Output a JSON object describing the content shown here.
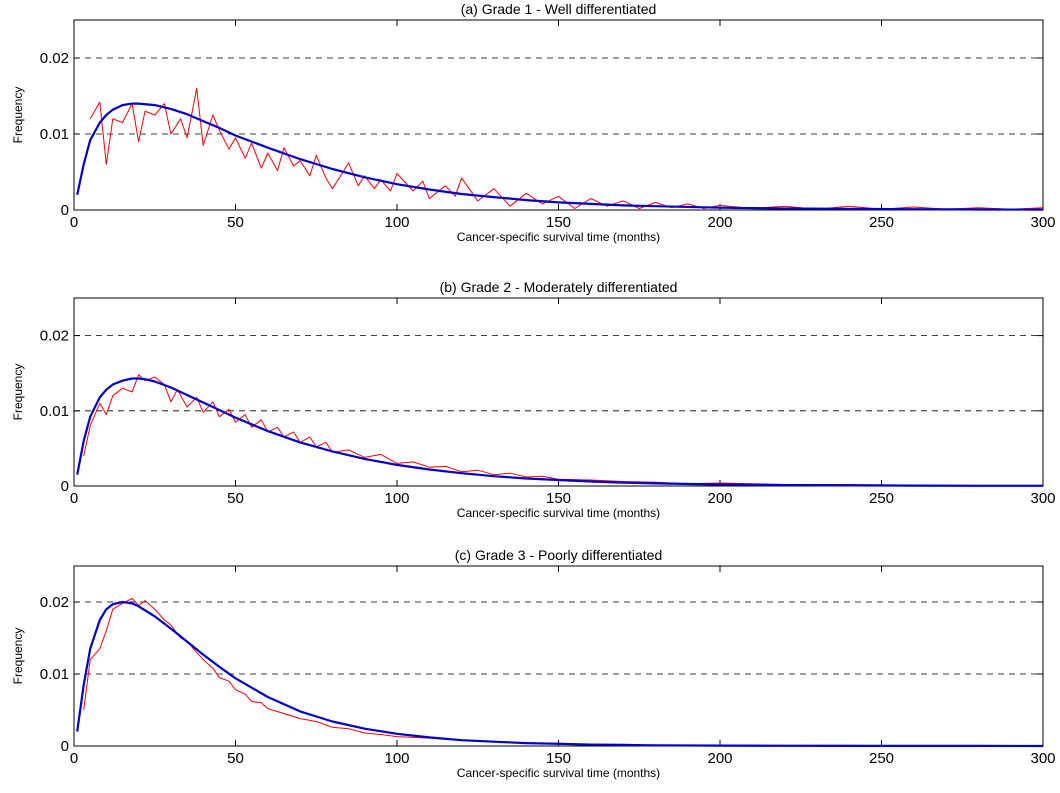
{
  "chart_data": [
    {
      "type": "line",
      "title": "(a) Grade 1 - Well differentiated",
      "xlabel": "Cancer-specific survival time (months)",
      "ylabel": "Frequency",
      "xlim": [
        0,
        300
      ],
      "ylim": [
        0,
        0.025
      ],
      "xticks": [
        0,
        50,
        100,
        150,
        200,
        250,
        300
      ],
      "yticks": [
        0,
        0.01,
        0.02
      ],
      "ytick_labels": [
        "0",
        "0.01",
        "0.02"
      ],
      "grid": "horizontal dashed",
      "series": [
        {
          "kind": "empirical",
          "color": "#ff0000",
          "x": [
            5,
            8,
            10,
            12,
            15,
            18,
            20,
            22,
            25,
            28,
            30,
            33,
            35,
            38,
            40,
            43,
            45,
            48,
            50,
            53,
            55,
            58,
            60,
            63,
            65,
            68,
            70,
            73,
            75,
            78,
            80,
            83,
            85,
            88,
            90,
            93,
            95,
            98,
            100,
            105,
            108,
            110,
            115,
            118,
            120,
            125,
            130,
            135,
            140,
            145,
            150,
            155,
            160,
            165,
            170,
            175,
            180,
            185,
            190,
            195,
            200,
            210,
            220,
            230,
            240,
            250,
            260,
            270,
            280,
            290,
            300
          ],
          "y": [
            0.012,
            0.0142,
            0.006,
            0.012,
            0.0115,
            0.014,
            0.009,
            0.013,
            0.0125,
            0.014,
            0.01,
            0.012,
            0.0095,
            0.016,
            0.0085,
            0.0125,
            0.0105,
            0.008,
            0.0095,
            0.0068,
            0.0088,
            0.0055,
            0.0075,
            0.0052,
            0.0082,
            0.0058,
            0.0065,
            0.0045,
            0.0072,
            0.0042,
            0.0028,
            0.0048,
            0.0062,
            0.0032,
            0.0045,
            0.0028,
            0.004,
            0.0025,
            0.0048,
            0.0025,
            0.0038,
            0.0015,
            0.0032,
            0.0018,
            0.0042,
            0.0012,
            0.0028,
            0.0005,
            0.0022,
            0.0008,
            0.0018,
            0.0002,
            0.0015,
            0.0005,
            0.0012,
            0.0002,
            0.001,
            0.0003,
            0.0008,
            0.0002,
            0.0006,
            0.0002,
            0.0005,
            0.0001,
            0.0005,
            0.0001,
            0.0004,
            0.0001,
            0.0003,
            0.0001,
            0.0003
          ]
        },
        {
          "kind": "fitted",
          "color": "#0000cc",
          "x": [
            1,
            3,
            5,
            8,
            10,
            12,
            15,
            18,
            20,
            25,
            30,
            35,
            40,
            45,
            50,
            60,
            70,
            80,
            90,
            100,
            110,
            120,
            130,
            140,
            150,
            160,
            170,
            180,
            200,
            220,
            240,
            260,
            280,
            300
          ],
          "y": [
            0.002,
            0.006,
            0.0092,
            0.0115,
            0.0125,
            0.0132,
            0.0138,
            0.014,
            0.014,
            0.0138,
            0.0133,
            0.0126,
            0.0117,
            0.0108,
            0.0098,
            0.0082,
            0.0067,
            0.0054,
            0.0043,
            0.0034,
            0.0027,
            0.0021,
            0.0017,
            0.0013,
            0.001,
            0.0008,
            0.0006,
            0.0005,
            0.0003,
            0.0002,
            0.00015,
            0.0001,
            7e-05,
            5e-05
          ]
        }
      ]
    },
    {
      "type": "line",
      "title": "(b) Grade 2 - Moderately differentiated",
      "xlabel": "Cancer-specific survival time (months)",
      "ylabel": "Frequency",
      "xlim": [
        0,
        300
      ],
      "ylim": [
        0,
        0.025
      ],
      "xticks": [
        0,
        50,
        100,
        150,
        200,
        250,
        300
      ],
      "yticks": [
        0,
        0.01,
        0.02
      ],
      "ytick_labels": [
        "0",
        "0.01",
        "0.02"
      ],
      "grid": "horizontal dashed",
      "series": [
        {
          "kind": "empirical",
          "color": "#ff0000",
          "x": [
            3,
            5,
            8,
            10,
            12,
            15,
            18,
            20,
            22,
            25,
            28,
            30,
            32,
            35,
            38,
            40,
            43,
            45,
            48,
            50,
            53,
            55,
            58,
            60,
            63,
            65,
            68,
            70,
            73,
            75,
            78,
            80,
            85,
            90,
            95,
            100,
            105,
            110,
            115,
            120,
            125,
            130,
            135,
            140,
            145,
            150,
            160,
            170,
            180,
            190,
            200,
            220,
            240,
            260,
            280,
            300
          ],
          "y": [
            0.004,
            0.008,
            0.011,
            0.0095,
            0.012,
            0.013,
            0.0125,
            0.0148,
            0.014,
            0.0145,
            0.0135,
            0.0112,
            0.0128,
            0.0105,
            0.0118,
            0.0098,
            0.0112,
            0.0092,
            0.0102,
            0.0085,
            0.0095,
            0.0078,
            0.0088,
            0.0072,
            0.0078,
            0.0065,
            0.0072,
            0.0058,
            0.0065,
            0.0052,
            0.0058,
            0.0045,
            0.0048,
            0.0038,
            0.0042,
            0.003,
            0.0032,
            0.0025,
            0.0026,
            0.0019,
            0.0021,
            0.0015,
            0.0017,
            0.0012,
            0.0013,
            0.0009,
            0.0008,
            0.0006,
            0.0005,
            0.0003,
            0.0004,
            0.0002,
            0.0002,
            0.0001,
            0.0001,
            0.0001
          ]
        },
        {
          "kind": "fitted",
          "color": "#0000cc",
          "x": [
            1,
            3,
            5,
            8,
            10,
            12,
            15,
            18,
            20,
            22,
            25,
            30,
            35,
            40,
            45,
            50,
            60,
            70,
            80,
            90,
            100,
            110,
            120,
            130,
            140,
            150,
            160,
            170,
            180,
            200,
            220,
            240,
            260,
            280,
            300
          ],
          "y": [
            0.0015,
            0.006,
            0.0092,
            0.0118,
            0.0128,
            0.0135,
            0.014,
            0.0143,
            0.0143,
            0.0142,
            0.0139,
            0.0131,
            0.0121,
            0.0111,
            0.0101,
            0.0091,
            0.0073,
            0.0058,
            0.0046,
            0.0036,
            0.0028,
            0.0022,
            0.0017,
            0.0013,
            0.001,
            0.0008,
            0.0006,
            0.00045,
            0.00035,
            0.0002,
            0.00012,
            8e-05,
            5e-05,
            3e-05,
            2e-05
          ]
        }
      ]
    },
    {
      "type": "line",
      "title": "(c) Grade 3 - Poorly differentiated",
      "xlabel": "Cancer-specific survival time (months)",
      "ylabel": "Frequency",
      "xlim": [
        0,
        300
      ],
      "ylim": [
        0,
        0.025
      ],
      "xticks": [
        0,
        50,
        100,
        150,
        200,
        250,
        300
      ],
      "yticks": [
        0,
        0.01,
        0.02
      ],
      "ytick_labels": [
        "0",
        "0.01",
        "0.02"
      ],
      "grid": "horizontal dashed",
      "series": [
        {
          "kind": "empirical",
          "color": "#ff0000",
          "x": [
            3,
            5,
            8,
            10,
            12,
            15,
            18,
            20,
            22,
            25,
            28,
            30,
            33,
            35,
            38,
            40,
            43,
            45,
            48,
            50,
            53,
            55,
            58,
            60,
            65,
            70,
            75,
            80,
            85,
            90,
            95,
            100,
            110,
            120,
            130,
            140,
            150,
            160,
            170,
            180,
            200,
            220,
            240,
            260,
            280,
            300
          ],
          "y": [
            0.005,
            0.012,
            0.0135,
            0.016,
            0.019,
            0.0198,
            0.0205,
            0.0195,
            0.0202,
            0.019,
            0.0175,
            0.0168,
            0.015,
            0.0145,
            0.013,
            0.012,
            0.0108,
            0.0095,
            0.009,
            0.0078,
            0.0072,
            0.0062,
            0.006,
            0.0052,
            0.0045,
            0.0038,
            0.0034,
            0.0026,
            0.0024,
            0.0018,
            0.0016,
            0.0013,
            0.0011,
            0.0008,
            0.0006,
            0.0004,
            0.0004,
            0.0002,
            0.0002,
            0.0001,
            0.0001,
            0.0001,
            0.0001,
            0.0,
            0.0,
            0.0
          ]
        },
        {
          "kind": "fitted",
          "color": "#0000cc",
          "x": [
            1,
            3,
            5,
            8,
            10,
            12,
            15,
            18,
            20,
            25,
            30,
            35,
            40,
            45,
            50,
            60,
            70,
            80,
            90,
            100,
            110,
            120,
            130,
            140,
            150,
            160,
            170,
            180,
            200,
            220,
            240,
            260,
            280,
            300
          ],
          "y": [
            0.002,
            0.0085,
            0.0135,
            0.0175,
            0.019,
            0.0197,
            0.02,
            0.0198,
            0.0194,
            0.018,
            0.0163,
            0.0145,
            0.0127,
            0.011,
            0.0094,
            0.0068,
            0.0048,
            0.0034,
            0.0024,
            0.0017,
            0.0012,
            0.0008,
            0.0006,
            0.0004,
            0.0003,
            0.0002,
            0.00015,
            0.0001,
            5e-05,
            3e-05,
            2e-05,
            1e-05,
            1e-05,
            0.0
          ]
        }
      ]
    }
  ]
}
